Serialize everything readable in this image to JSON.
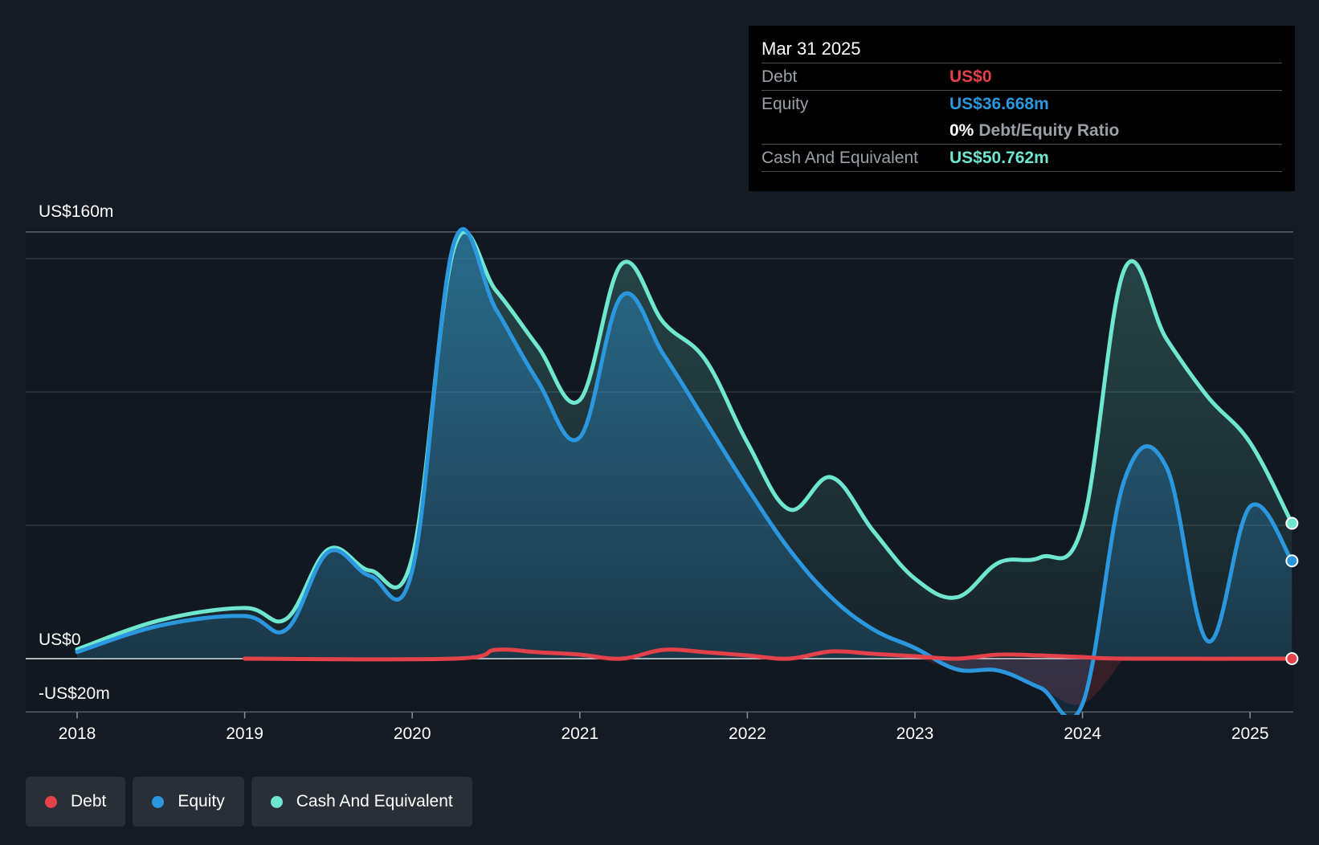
{
  "chart_data": {
    "type": "area",
    "x_ticks": [
      "2018",
      "2019",
      "2020",
      "2021",
      "2022",
      "2023",
      "2024",
      "2025"
    ],
    "y_labels": {
      "top": "US$160m",
      "zero": "US$0",
      "bottom": "-US$20m"
    },
    "ylim": [
      -20,
      160
    ],
    "grid": true,
    "legend_position": "bottom-left",
    "series": [
      {
        "name": "Debt",
        "color": "#e5414b",
        "points": [
          [
            2019.0,
            0
          ],
          [
            2020.25,
            0
          ],
          [
            2020.5,
            3.3
          ],
          [
            2020.75,
            2.4
          ],
          [
            2021.0,
            1.5
          ],
          [
            2021.25,
            0
          ],
          [
            2021.5,
            3.3
          ],
          [
            2021.75,
            2.4
          ],
          [
            2022.0,
            1.2
          ],
          [
            2022.25,
            0
          ],
          [
            2022.5,
            2.7
          ],
          [
            2022.75,
            1.8
          ],
          [
            2023.0,
            0.9
          ],
          [
            2023.25,
            0
          ],
          [
            2023.5,
            1.5
          ],
          [
            2023.75,
            1.2
          ],
          [
            2024.0,
            0.6
          ],
          [
            2024.25,
            0
          ],
          [
            2025.25,
            0
          ]
        ]
      },
      {
        "name": "Equity",
        "color": "#2b97de",
        "points": [
          [
            2018.0,
            2.5
          ],
          [
            2018.5,
            12.5
          ],
          [
            2019.0,
            16
          ],
          [
            2019.25,
            11
          ],
          [
            2019.5,
            40
          ],
          [
            2019.75,
            31
          ],
          [
            2020.0,
            33
          ],
          [
            2020.25,
            156
          ],
          [
            2020.5,
            131
          ],
          [
            2020.75,
            104
          ],
          [
            2021.0,
            83
          ],
          [
            2021.25,
            136
          ],
          [
            2021.5,
            114
          ],
          [
            2021.75,
            89
          ],
          [
            2022.0,
            64
          ],
          [
            2022.25,
            41
          ],
          [
            2022.5,
            23
          ],
          [
            2022.75,
            11
          ],
          [
            2023.0,
            4
          ],
          [
            2023.25,
            -4
          ],
          [
            2023.5,
            -4.5
          ],
          [
            2023.75,
            -11
          ],
          [
            2024.0,
            -17
          ],
          [
            2024.25,
            67
          ],
          [
            2024.5,
            72
          ],
          [
            2024.75,
            6.5
          ],
          [
            2025.0,
            57
          ],
          [
            2025.25,
            36.668
          ]
        ]
      },
      {
        "name": "Cash And Equivalent",
        "color": "#6ee6d0",
        "points": [
          [
            2018.0,
            3.5
          ],
          [
            2018.5,
            14.5
          ],
          [
            2019.0,
            19
          ],
          [
            2019.25,
            15
          ],
          [
            2019.5,
            41
          ],
          [
            2019.75,
            33
          ],
          [
            2020.0,
            38
          ],
          [
            2020.25,
            154
          ],
          [
            2020.5,
            138
          ],
          [
            2020.75,
            117
          ],
          [
            2021.0,
            97
          ],
          [
            2021.25,
            148
          ],
          [
            2021.5,
            126
          ],
          [
            2021.75,
            112
          ],
          [
            2022.0,
            81
          ],
          [
            2022.25,
            56
          ],
          [
            2022.5,
            68
          ],
          [
            2022.75,
            48
          ],
          [
            2023.0,
            30
          ],
          [
            2023.25,
            23
          ],
          [
            2023.5,
            36
          ],
          [
            2023.75,
            38
          ],
          [
            2024.0,
            50
          ],
          [
            2024.25,
            146
          ],
          [
            2024.5,
            120
          ],
          [
            2024.75,
            98
          ],
          [
            2025.0,
            81
          ],
          [
            2025.25,
            50.762
          ]
        ]
      }
    ]
  },
  "tooltip": {
    "date": "Mar 31 2025",
    "debt_label": "Debt",
    "debt_value": "US$0",
    "equity_label": "Equity",
    "equity_value": "US$36.668m",
    "ratio_value": "0%",
    "ratio_label": "Debt/Equity Ratio",
    "cash_label": "Cash And Equivalent",
    "cash_value": "US$50.762m"
  },
  "legend": {
    "items": [
      {
        "label": "Debt",
        "color": "#e5414b"
      },
      {
        "label": "Equity",
        "color": "#2b97de"
      },
      {
        "label": "Cash And Equivalent",
        "color": "#6ee6d0"
      }
    ]
  },
  "colors": {
    "background": "#151b24",
    "debt": "#e5414b",
    "equity": "#2b97de",
    "cash": "#6ee6d0"
  }
}
